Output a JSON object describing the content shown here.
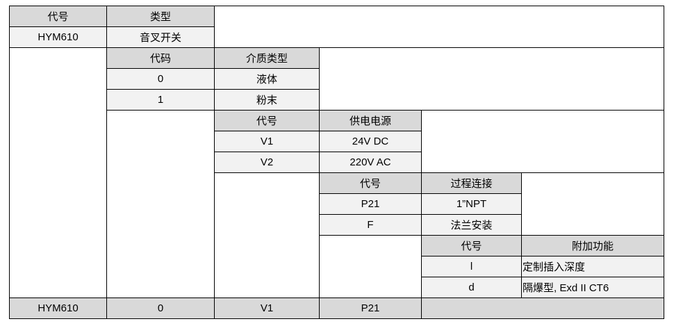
{
  "table": {
    "type": {
      "code_header": "代号",
      "type_header": "类型",
      "code": "HYM610",
      "type": "音叉开关"
    },
    "medium": {
      "code_header": "代码",
      "name_header": "介质类型",
      "rows": [
        {
          "code": "0",
          "name": "液体"
        },
        {
          "code": "1",
          "name": "粉末"
        }
      ]
    },
    "power": {
      "code_header": "代号",
      "name_header": "供电电源",
      "rows": [
        {
          "code": "V1",
          "name": "24V DC"
        },
        {
          "code": "V2",
          "name": "220V AC"
        }
      ]
    },
    "connection": {
      "code_header": "代号",
      "name_header": "过程连接",
      "rows": [
        {
          "code": "P21",
          "name": "1”NPT"
        },
        {
          "code": "F",
          "name": "法兰安装"
        }
      ]
    },
    "extra": {
      "code_header": "代号",
      "name_header": "附加功能",
      "rows": [
        {
          "code": "l",
          "name": "定制插入深度"
        },
        {
          "code": "d",
          "name": "隔爆型, Exd II CT6"
        }
      ]
    },
    "example": [
      "HYM610",
      "0",
      "V1",
      "P21"
    ]
  }
}
